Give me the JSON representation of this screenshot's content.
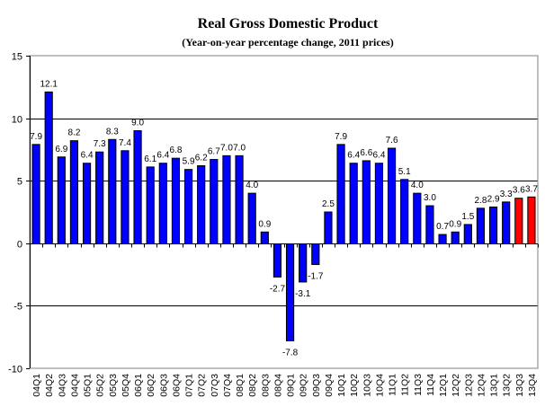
{
  "chart_data": {
    "type": "bar",
    "title": "Real Gross Domestic Product",
    "subtitle": "(Year-on-year percentage change, 2011 prices)",
    "xlabel": "",
    "ylabel": "",
    "ylim": [
      -10,
      15
    ],
    "yticks": [
      15,
      10,
      5,
      0,
      -5,
      -10
    ],
    "grid": "horizontal major lines at y-ticks",
    "legend": "none",
    "categories": [
      "04Q1",
      "04Q2",
      "04Q3",
      "04Q4",
      "05Q1",
      "05Q2",
      "05Q3",
      "05Q4",
      "06Q1",
      "06Q2",
      "06Q3",
      "06Q4",
      "07Q1",
      "07Q2",
      "07Q3",
      "07Q4",
      "08Q1",
      "08Q2",
      "08Q3",
      "08Q4",
      "09Q1",
      "09Q2",
      "09Q3",
      "09Q4",
      "10Q1",
      "10Q2",
      "10Q3",
      "10Q4",
      "11Q1",
      "11Q2",
      "11Q3",
      "11Q4",
      "12Q1",
      "12Q2",
      "12Q3",
      "12Q4",
      "13Q1",
      "13Q2",
      "13Q3",
      "13Q4"
    ],
    "values": [
      7.9,
      12.1,
      6.9,
      8.2,
      6.4,
      7.3,
      8.3,
      7.4,
      9.0,
      6.1,
      6.4,
      6.8,
      5.9,
      6.2,
      6.7,
      7.0,
      7.0,
      4.0,
      0.9,
      -2.7,
      -7.8,
      -3.1,
      -1.7,
      2.5,
      7.9,
      6.4,
      6.6,
      6.4,
      7.6,
      5.1,
      4.0,
      3.0,
      0.7,
      0.9,
      1.5,
      2.8,
      2.9,
      3.3,
      3.6,
      3.7
    ],
    "value_labels": [
      "7.9",
      "12.1",
      "6.9",
      "8.2",
      "6.4",
      "7.3",
      "8.3",
      "7.4",
      "9.0",
      "6.1",
      "6.4",
      "6.8",
      "5.9",
      "6.2",
      "6.7",
      "7.0",
      "7.0",
      "4.0",
      "0.9",
      "-2.7",
      "-7.8",
      "-3.1",
      "-1.7",
      "2.5",
      "7.9",
      "6.4",
      "6.6",
      "6.4",
      "7.6",
      "5.1",
      "4.0",
      "3.0",
      "0.7",
      "0.9",
      "1.5",
      "2.8",
      "2.9",
      "3.3",
      "3.6",
      "3.7"
    ],
    "highlighted": [
      "13Q3",
      "13Q4"
    ],
    "colors": {
      "bar": "#0000ff",
      "highlight": "#ff0000",
      "bar_border": "#000000",
      "gridline": "#000000",
      "frame": "#808080"
    }
  }
}
